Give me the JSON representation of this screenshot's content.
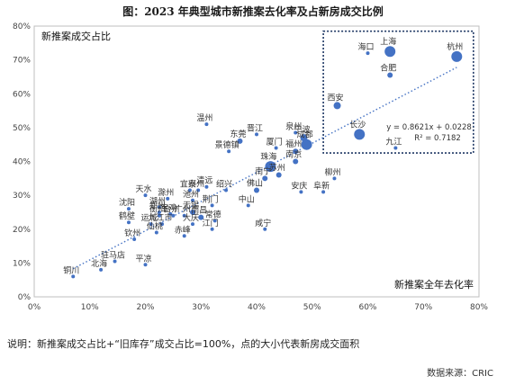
{
  "header": {
    "title": "图：2023 年典型城市新推案去化率及占新房成交比例"
  },
  "footer": {
    "note": "说明：新推案成交占比+“旧库存”成交占比=100%，点的大小代表新房成交面积",
    "source": "数据来源：CRIC"
  },
  "chart_data": {
    "type": "scatter",
    "title": "图：2023 年典型城市新推案去化率及占新房成交比例",
    "xlabel": "新推案全年去化率",
    "ylabel": "新推案成交占比",
    "xlim": [
      0,
      80
    ],
    "ylim": [
      0,
      80
    ],
    "x_ticks": [
      "0%",
      "10%",
      "20%",
      "30%",
      "40%",
      "50%",
      "60%",
      "70%",
      "80%"
    ],
    "y_ticks": [
      "0%",
      "10%",
      "20%",
      "30%",
      "40%",
      "50%",
      "60%",
      "70%",
      "80%"
    ],
    "grid": false,
    "legend": "none",
    "point_color": "#4472C4",
    "trendline": {
      "equation": "y = 0.8621x + 0.0228",
      "r2": "R² = 0.7182",
      "slope": 0.8621,
      "intercept": 2.28,
      "x_range": [
        7,
        76
      ]
    },
    "highlight_box": {
      "x": [
        52,
        79
      ],
      "y": [
        42.5,
        78.5
      ]
    },
    "points": [
      {
        "label": "海口",
        "x": 60,
        "y": 72,
        "size": 2
      },
      {
        "label": "上海",
        "x": 64,
        "y": 72.5,
        "size": 6
      },
      {
        "label": "杭州",
        "x": 76,
        "y": 71,
        "size": 6
      },
      {
        "label": "合肥",
        "x": 64,
        "y": 65.5,
        "size": 3
      },
      {
        "label": "西安",
        "x": 54.5,
        "y": 56.5,
        "size": 4
      },
      {
        "label": "长沙",
        "x": 58.5,
        "y": 48,
        "size": 6
      },
      {
        "label": "九江",
        "x": 65,
        "y": 44,
        "size": 2
      },
      {
        "label": "温州",
        "x": 31,
        "y": 51,
        "size": 2
      },
      {
        "label": "晋江",
        "x": 40,
        "y": 48,
        "size": 2
      },
      {
        "label": "东莞",
        "x": 37,
        "y": 46,
        "size": 3
      },
      {
        "label": "景德镇",
        "x": 35,
        "y": 43,
        "size": 2
      },
      {
        "label": "泉州",
        "x": 47,
        "y": 48.5,
        "size": 2
      },
      {
        "label": "宁波",
        "x": 48.5,
        "y": 47,
        "size": 4
      },
      {
        "label": "成都",
        "x": 49,
        "y": 45,
        "size": 6
      },
      {
        "label": "厦门",
        "x": 43.5,
        "y": 44,
        "size": 2
      },
      {
        "label": "福州",
        "x": 47,
        "y": 43,
        "size": 3
      },
      {
        "label": "南京",
        "x": 47,
        "y": 40,
        "size": 3
      },
      {
        "label": "珠海",
        "x": 42.5,
        "y": 38.5,
        "size": 6
      },
      {
        "label": "南宁",
        "x": 41.5,
        "y": 35,
        "size": 3
      },
      {
        "label": "苏州",
        "x": 44,
        "y": 36,
        "size": 3
      },
      {
        "label": "柳州",
        "x": 54,
        "y": 35,
        "size": 2
      },
      {
        "label": "安庆",
        "x": 48,
        "y": 31,
        "size": 2
      },
      {
        "label": "阜新",
        "x": 52,
        "y": 31,
        "size": 2
      },
      {
        "label": "佛山",
        "x": 40,
        "y": 31.5,
        "size": 3
      },
      {
        "label": "清远",
        "x": 31,
        "y": 32.5,
        "size": 2
      },
      {
        "label": "泰州",
        "x": 29.5,
        "y": 31.5,
        "size": 2
      },
      {
        "label": "绍兴",
        "x": 34.5,
        "y": 31.5,
        "size": 2
      },
      {
        "label": "宜兴",
        "x": 28,
        "y": 31.5,
        "size": 2
      },
      {
        "label": "天水",
        "x": 20,
        "y": 30,
        "size": 2
      },
      {
        "label": "滁州",
        "x": 24,
        "y": 29,
        "size": 2
      },
      {
        "label": "池州",
        "x": 28.5,
        "y": 28.5,
        "size": 2
      },
      {
        "label": "荆门",
        "x": 32,
        "y": 27,
        "size": 2
      },
      {
        "label": "中山",
        "x": 38.5,
        "y": 27,
        "size": 2
      },
      {
        "label": "沈阳",
        "x": 17,
        "y": 26,
        "size": 2
      },
      {
        "label": "湖州",
        "x": 22.5,
        "y": 26.5,
        "size": 2
      },
      {
        "label": "无锡",
        "x": 28.5,
        "y": 25,
        "size": 3
      },
      {
        "label": "郑州",
        "x": 22.5,
        "y": 25,
        "size": 2
      },
      {
        "label": "宝鸡",
        "x": 24.5,
        "y": 24.5,
        "size": 2
      },
      {
        "label": "衡州",
        "x": 22.5,
        "y": 24,
        "size": 2
      },
      {
        "label": "合州",
        "x": 25,
        "y": 24,
        "size": 2
      },
      {
        "label": "广州",
        "x": 27,
        "y": 24,
        "size": 2
      },
      {
        "label": "南昌",
        "x": 30,
        "y": 23.5,
        "size": 3
      },
      {
        "label": "常德",
        "x": 32.5,
        "y": 22.5,
        "size": 2
      },
      {
        "label": "大庆",
        "x": 28.5,
        "y": 21.5,
        "size": 2
      },
      {
        "label": "鹤壁",
        "x": 17,
        "y": 22,
        "size": 2
      },
      {
        "label": "运城",
        "x": 21,
        "y": 21.5,
        "size": 2
      },
      {
        "label": "九江市",
        "x": 23,
        "y": 21.5,
        "size": 2
      },
      {
        "label": "江门",
        "x": 32,
        "y": 20,
        "size": 2
      },
      {
        "label": "咸宁",
        "x": 41.5,
        "y": 20,
        "size": 2
      },
      {
        "label": "仙桃",
        "x": 22,
        "y": 19,
        "size": 2
      },
      {
        "label": "赤峰",
        "x": 27,
        "y": 18,
        "size": 2
      },
      {
        "label": "钦州",
        "x": 18,
        "y": 17,
        "size": 2
      },
      {
        "label": "驻马店",
        "x": 14.5,
        "y": 10.5,
        "size": 2
      },
      {
        "label": "平凉",
        "x": 20,
        "y": 9.5,
        "size": 2
      },
      {
        "label": "北海",
        "x": 12,
        "y": 8,
        "size": 2
      },
      {
        "label": "铜川",
        "x": 7,
        "y": 6,
        "size": 2
      }
    ]
  }
}
